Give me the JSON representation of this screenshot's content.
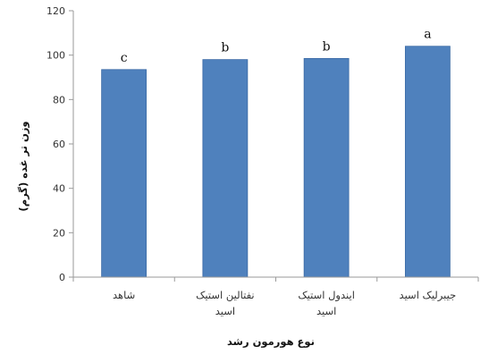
{
  "chart_data": {
    "type": "bar",
    "categories": [
      "شاهد",
      "نفتالین استیک اسید",
      "ایندول استیک اسید",
      "جیبرلیک اسید"
    ],
    "values": [
      93.5,
      98,
      98.5,
      104
    ],
    "significance_letters": [
      "c",
      "b",
      "b",
      "a"
    ],
    "xlabel": "نوع هورمون رشد",
    "ylabel": "وزن تر غده (گرم)",
    "ylim": [
      0,
      120
    ],
    "yticks": [
      0,
      20,
      40,
      60,
      80,
      100,
      120
    ],
    "grid": false,
    "bar_color": "#4f81bd",
    "bar_edge_color": "#3a6aa5",
    "axis_color": "#9a9a9a"
  }
}
